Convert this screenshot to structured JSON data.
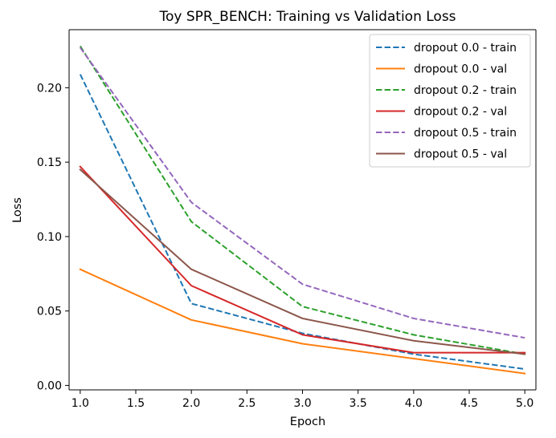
{
  "chart_data": {
    "type": "line",
    "title": "Toy SPR_BENCH: Training vs Validation Loss",
    "xlabel": "Epoch",
    "ylabel": "Loss",
    "xlim": [
      0.9,
      5.1
    ],
    "ylim": [
      -0.003,
      0.239
    ],
    "x_ticks": [
      "1.0",
      "1.5",
      "2.0",
      "2.5",
      "3.0",
      "3.5",
      "4.0",
      "4.5",
      "5.0"
    ],
    "y_ticks": [
      "0.00",
      "0.05",
      "0.10",
      "0.15",
      "0.20"
    ],
    "legend_position": "top-right",
    "grid": false,
    "x": [
      1,
      2,
      3,
      4,
      5
    ],
    "series": [
      {
        "name": "dropout 0.0 - train",
        "values": [
          0.209,
          0.055,
          0.035,
          0.021,
          0.011
        ],
        "color": "#1f77b4",
        "dashed": true
      },
      {
        "name": "dropout 0.0 - val",
        "values": [
          0.078,
          0.044,
          0.028,
          0.018,
          0.008
        ],
        "color": "#ff7f0e",
        "dashed": false
      },
      {
        "name": "dropout 0.2 - train",
        "values": [
          0.228,
          0.11,
          0.053,
          0.034,
          0.021
        ],
        "color": "#2ca02c",
        "dashed": true
      },
      {
        "name": "dropout 0.2 - val",
        "values": [
          0.147,
          0.067,
          0.034,
          0.022,
          0.022
        ],
        "color": "#d62728",
        "dashed": false
      },
      {
        "name": "dropout 0.5 - train",
        "values": [
          0.227,
          0.123,
          0.068,
          0.045,
          0.032
        ],
        "color": "#9467bd",
        "dashed": true
      },
      {
        "name": "dropout 0.5 - val",
        "values": [
          0.145,
          0.078,
          0.045,
          0.03,
          0.021
        ],
        "color": "#8c564b",
        "dashed": false
      }
    ]
  }
}
